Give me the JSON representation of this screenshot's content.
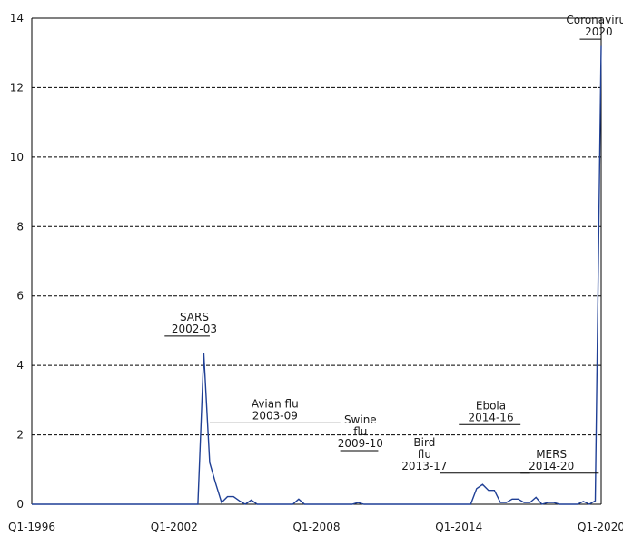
{
  "chart_data": {
    "type": "line",
    "title": "",
    "xlabel": "",
    "ylabel": "",
    "xlim": [
      "Q1-1996",
      "Q1-2020"
    ],
    "ylim": [
      0,
      14
    ],
    "y_ticks": [
      "0",
      "2",
      "4",
      "6",
      "8",
      "10",
      "12",
      "14"
    ],
    "x_ticks": [
      "Q1-1996",
      "Q1-2002",
      "Q1-2008",
      "Q1-2014",
      "Q1-2020"
    ],
    "grid": "horizontal dashed",
    "colors": {
      "series": "#1f3f95"
    },
    "series": [
      {
        "x": [
          "Q1-1996",
          "Q1-1997",
          "Q1-1998",
          "Q1-1999",
          "Q1-2000",
          "Q1-2001",
          "Q1-2002",
          "Q1-2003",
          "Q2-2003",
          "Q3-2003",
          "Q4-2003",
          "Q1-2004",
          "Q2-2004",
          "Q3-2004",
          "Q4-2004",
          "Q1-2005",
          "Q2-2005",
          "Q3-2005",
          "Q4-2005",
          "Q1-2006",
          "Q2-2006",
          "Q3-2006",
          "Q4-2006",
          "Q1-2007",
          "Q2-2007",
          "Q3-2007",
          "Q4-2007",
          "Q1-2008",
          "Q2-2008",
          "Q3-2008",
          "Q4-2008",
          "Q1-2009",
          "Q2-2009",
          "Q3-2009",
          "Q4-2009",
          "Q1-2010",
          "Q1-2011",
          "Q1-2012",
          "Q1-2013",
          "Q1-2014",
          "Q2-2014",
          "Q3-2014",
          "Q4-2014",
          "Q1-2015",
          "Q2-2015",
          "Q3-2015",
          "Q4-2015",
          "Q1-2016",
          "Q2-2016",
          "Q3-2016",
          "Q4-2016",
          "Q1-2017",
          "Q2-2017",
          "Q3-2017",
          "Q4-2017",
          "Q1-2018",
          "Q2-2018",
          "Q3-2018",
          "Q4-2018",
          "Q1-2019",
          "Q2-2019",
          "Q3-2019",
          "Q4-2019",
          "Q1-2020"
        ],
        "values": [
          0,
          0,
          0,
          0,
          0,
          0,
          0,
          0,
          4.35,
          1.2,
          0.6,
          0.05,
          0.22,
          0.22,
          0.1,
          0,
          0.12,
          0,
          0,
          0,
          0,
          0,
          0,
          0,
          0.15,
          0,
          0,
          0,
          0,
          0,
          0,
          0,
          0,
          0,
          0.05,
          0,
          0,
          0,
          0,
          0,
          0,
          0,
          0.45,
          0.57,
          0.4,
          0.4,
          0.05,
          0.05,
          0.15,
          0.15,
          0.05,
          0.05,
          0.2,
          0,
          0.05,
          0.05,
          0,
          0,
          0,
          0,
          0.08,
          0,
          0.1,
          13.2
        ]
      }
    ],
    "annotations": [
      {
        "lines": [
          "SARS",
          "2002-03"
        ],
        "x": 2002.85,
        "y": 4.95,
        "span": [
          2001.6,
          2003.5
        ]
      },
      {
        "lines": [
          "Avian flu",
          "2003-09"
        ],
        "x": 2006.25,
        "y": 2.45,
        "span": [
          2003.5,
          2009.0
        ]
      },
      {
        "lines": [
          "Swine",
          "flu",
          "2009-10"
        ],
        "x": 2009.85,
        "y": 1.65,
        "span": [
          2009.0,
          2010.6
        ]
      },
      {
        "lines": [
          "Bird",
          "flu",
          "2013-17"
        ],
        "x": 2012.55,
        "y": 1.0,
        "span": [
          2013.2,
          2017.0
        ]
      },
      {
        "lines": [
          "Ebola",
          "2014-16"
        ],
        "x": 2015.35,
        "y": 2.4,
        "span": [
          2014.0,
          2016.6
        ]
      },
      {
        "lines": [
          "MERS",
          "2014-20"
        ],
        "x": 2017.9,
        "y": 1.0,
        "span": [
          2016.6,
          2019.9
        ]
      },
      {
        "lines": [
          "Coronavirus",
          "2020"
        ],
        "x": 2019.9,
        "y": 13.5,
        "span": [
          2019.1,
          2020.0
        ]
      }
    ]
  }
}
